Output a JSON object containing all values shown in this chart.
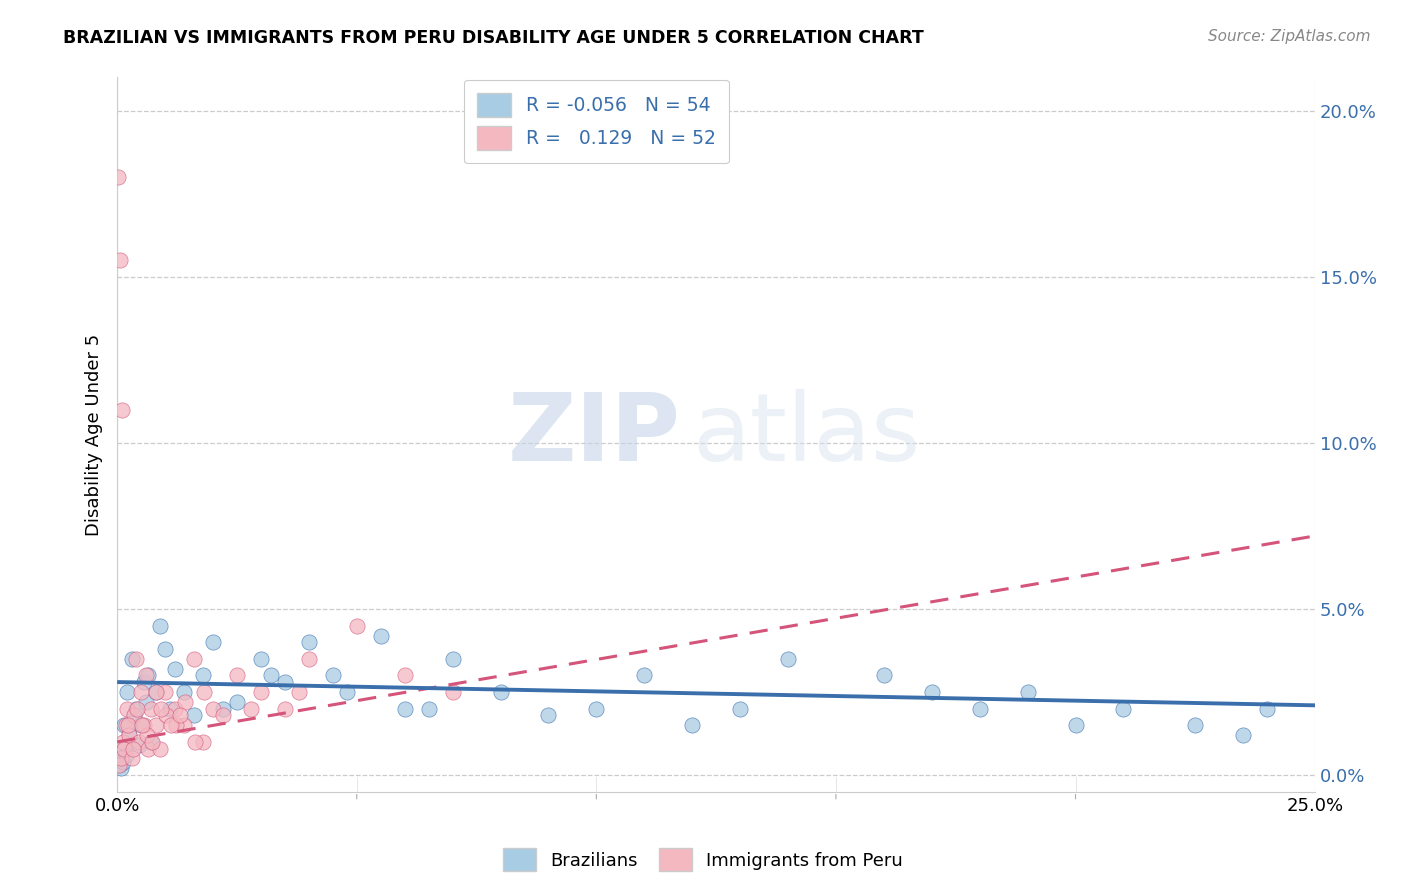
{
  "title": "BRAZILIAN VS IMMIGRANTS FROM PERU DISABILITY AGE UNDER 5 CORRELATION CHART",
  "source": "Source: ZipAtlas.com",
  "ylabel": "Disability Age Under 5",
  "yticks_labels": [
    "0.0%",
    "5.0%",
    "10.0%",
    "15.0%",
    "20.0%"
  ],
  "ytick_vals": [
    0,
    5,
    10,
    15,
    20
  ],
  "xlim": [
    0,
    25
  ],
  "ylim": [
    -0.5,
    21
  ],
  "legend_r_brazilian": "-0.056",
  "legend_n_brazilian": "54",
  "legend_r_peru": "0.129",
  "legend_n_peru": "52",
  "blue_color": "#a8cce4",
  "pink_color": "#f4b8c1",
  "blue_line_color": "#3a6fac",
  "pink_line_color": "#d4547a",
  "background_color": "#ffffff",
  "watermark_zip": "ZIP",
  "watermark_atlas": "atlas",
  "blue_reg_x0": 0,
  "blue_reg_y0": 2.8,
  "blue_reg_x1": 25,
  "blue_reg_y1": 2.1,
  "pink_reg_x0": 0,
  "pink_reg_y0": 1.0,
  "pink_reg_x1": 25,
  "pink_reg_y1": 7.2,
  "brazilians_x": [
    0.05,
    0.08,
    0.1,
    0.12,
    0.15,
    0.18,
    0.2,
    0.25,
    0.3,
    0.35,
    0.4,
    0.45,
    0.5,
    0.55,
    0.6,
    0.65,
    0.7,
    0.8,
    0.9,
    1.0,
    1.1,
    1.2,
    1.4,
    1.6,
    1.8,
    2.0,
    2.5,
    3.0,
    3.5,
    4.0,
    4.5,
    5.5,
    6.0,
    7.0,
    8.0,
    10.0,
    11.0,
    12.0,
    13.0,
    14.0,
    16.0,
    17.0,
    18.0,
    19.0,
    20.0,
    21.0,
    22.5,
    23.5,
    24.0,
    2.2,
    3.2,
    4.8,
    6.5,
    9.0
  ],
  "brazilians_y": [
    0.3,
    0.2,
    0.8,
    0.4,
    1.5,
    0.6,
    2.5,
    1.2,
    3.5,
    1.8,
    2.0,
    0.9,
    1.5,
    2.8,
    2.2,
    3.0,
    1.0,
    2.5,
    4.5,
    3.8,
    2.0,
    3.2,
    2.5,
    1.8,
    3.0,
    4.0,
    2.2,
    3.5,
    2.8,
    4.0,
    3.0,
    4.2,
    2.0,
    3.5,
    2.5,
    2.0,
    3.0,
    1.5,
    2.0,
    3.5,
    3.0,
    2.5,
    2.0,
    2.5,
    1.5,
    2.0,
    1.5,
    1.2,
    2.0,
    2.0,
    3.0,
    2.5,
    2.0,
    1.8
  ],
  "peru_x": [
    0.02,
    0.04,
    0.06,
    0.08,
    0.1,
    0.12,
    0.15,
    0.18,
    0.2,
    0.25,
    0.3,
    0.35,
    0.4,
    0.45,
    0.5,
    0.55,
    0.6,
    0.65,
    0.7,
    0.8,
    0.9,
    1.0,
    1.2,
    1.4,
    1.6,
    1.8,
    2.0,
    2.5,
    3.0,
    3.5,
    4.0,
    5.0,
    6.0,
    7.0,
    0.22,
    0.42,
    0.62,
    0.82,
    1.02,
    1.22,
    1.42,
    1.62,
    1.82,
    2.2,
    2.8,
    3.8,
    0.32,
    0.52,
    0.72,
    0.92,
    1.12,
    1.32
  ],
  "peru_y": [
    18.0,
    0.3,
    15.5,
    0.5,
    11.0,
    1.0,
    0.8,
    1.5,
    2.0,
    1.2,
    0.5,
    1.8,
    3.5,
    1.0,
    2.5,
    1.5,
    3.0,
    0.8,
    2.0,
    1.5,
    0.8,
    2.5,
    2.0,
    1.5,
    3.5,
    1.0,
    2.0,
    3.0,
    2.5,
    2.0,
    3.5,
    4.5,
    3.0,
    2.5,
    1.5,
    2.0,
    1.2,
    2.5,
    1.8,
    1.5,
    2.2,
    1.0,
    2.5,
    1.8,
    2.0,
    2.5,
    0.8,
    1.5,
    1.0,
    2.0,
    1.5,
    1.8
  ]
}
